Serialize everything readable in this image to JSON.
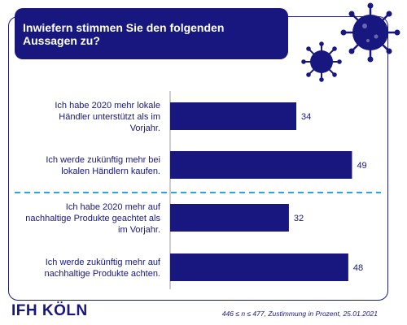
{
  "title": "Inwiefern stimmen Sie den folgenden Aussagen zu?",
  "logo": "IFH KÖLN",
  "footnote": "446 ≤ n ≤ 477,  Zustimmung in Prozent, 25.01.2021",
  "colors": {
    "bar": "#17177f",
    "divider": "#29a8e0",
    "virus": "#17177f"
  },
  "chart_data": {
    "type": "bar",
    "orientation": "horizontal",
    "categories": [
      [
        "Ich habe 2020 mehr lokale",
        "Händler unterstützt als im",
        "Vorjahr."
      ],
      [
        "Ich werde zukünftig mehr bei",
        "lokalen Händlern kaufen."
      ],
      [
        "Ich habe 2020 mehr auf",
        "nachhaltige Produkte geachtet als",
        "im Vorjahr."
      ],
      [
        "Ich werde zukünftig mehr auf",
        "nachhaltige Produkte achten."
      ]
    ],
    "values": [
      34,
      49,
      32,
      48
    ],
    "value_labels": [
      "34",
      "49",
      "32",
      "48"
    ],
    "divider_after_index": 1,
    "xlim": [
      0,
      60
    ]
  }
}
